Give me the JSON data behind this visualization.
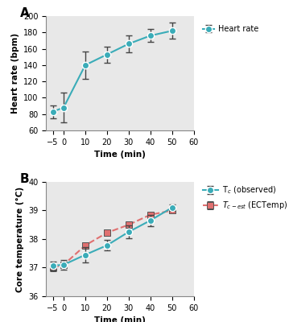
{
  "panel_A": {
    "x": [
      -5,
      0,
      10,
      20,
      30,
      40,
      50
    ],
    "y": [
      83,
      88,
      140,
      153,
      166,
      176,
      182
    ],
    "yerr": [
      8,
      18,
      17,
      10,
      10,
      8,
      10
    ],
    "color": "#3aacb8",
    "label": "Heart rate",
    "ylabel": "Heart rate (bpm)",
    "xlabel": "Time (min)",
    "ylim": [
      60,
      200
    ],
    "yticks": [
      60,
      80,
      100,
      120,
      140,
      160,
      180,
      200
    ],
    "xlim": [
      -8,
      55
    ],
    "xticks": [
      -5,
      0,
      10,
      20,
      30,
      40,
      50,
      60
    ]
  },
  "panel_B": {
    "x": [
      -5,
      0,
      10,
      20,
      30,
      40,
      50
    ],
    "y_obs": [
      37.07,
      37.1,
      37.45,
      37.78,
      38.25,
      38.65,
      39.1
    ],
    "yerr_obs": [
      0.15,
      0.18,
      0.28,
      0.18,
      0.22,
      0.2,
      0.12
    ],
    "y_est": [
      37.0,
      37.1,
      37.78,
      38.22,
      38.5,
      38.85,
      39.0
    ],
    "yerr_est": [
      0.12,
      0.12,
      0.1,
      0.12,
      0.1,
      0.08,
      0.08
    ],
    "color_obs": "#3aacb8",
    "color_est": "#e07070",
    "label_obs": "T$_c$ (observed)",
    "label_est": "T$_{c\\text{-}est}$ (ECTemp)",
    "ylabel": "Core temperature (°C)",
    "xlabel": "Time (min)",
    "ylim": [
      36,
      40
    ],
    "yticks": [
      36,
      37,
      38,
      39,
      40
    ],
    "xlim": [
      -8,
      55
    ],
    "xticks": [
      -5,
      0,
      10,
      20,
      30,
      40,
      50,
      60
    ]
  },
  "bg_color": "#e8e8e8",
  "fig_bg": "#ffffff"
}
